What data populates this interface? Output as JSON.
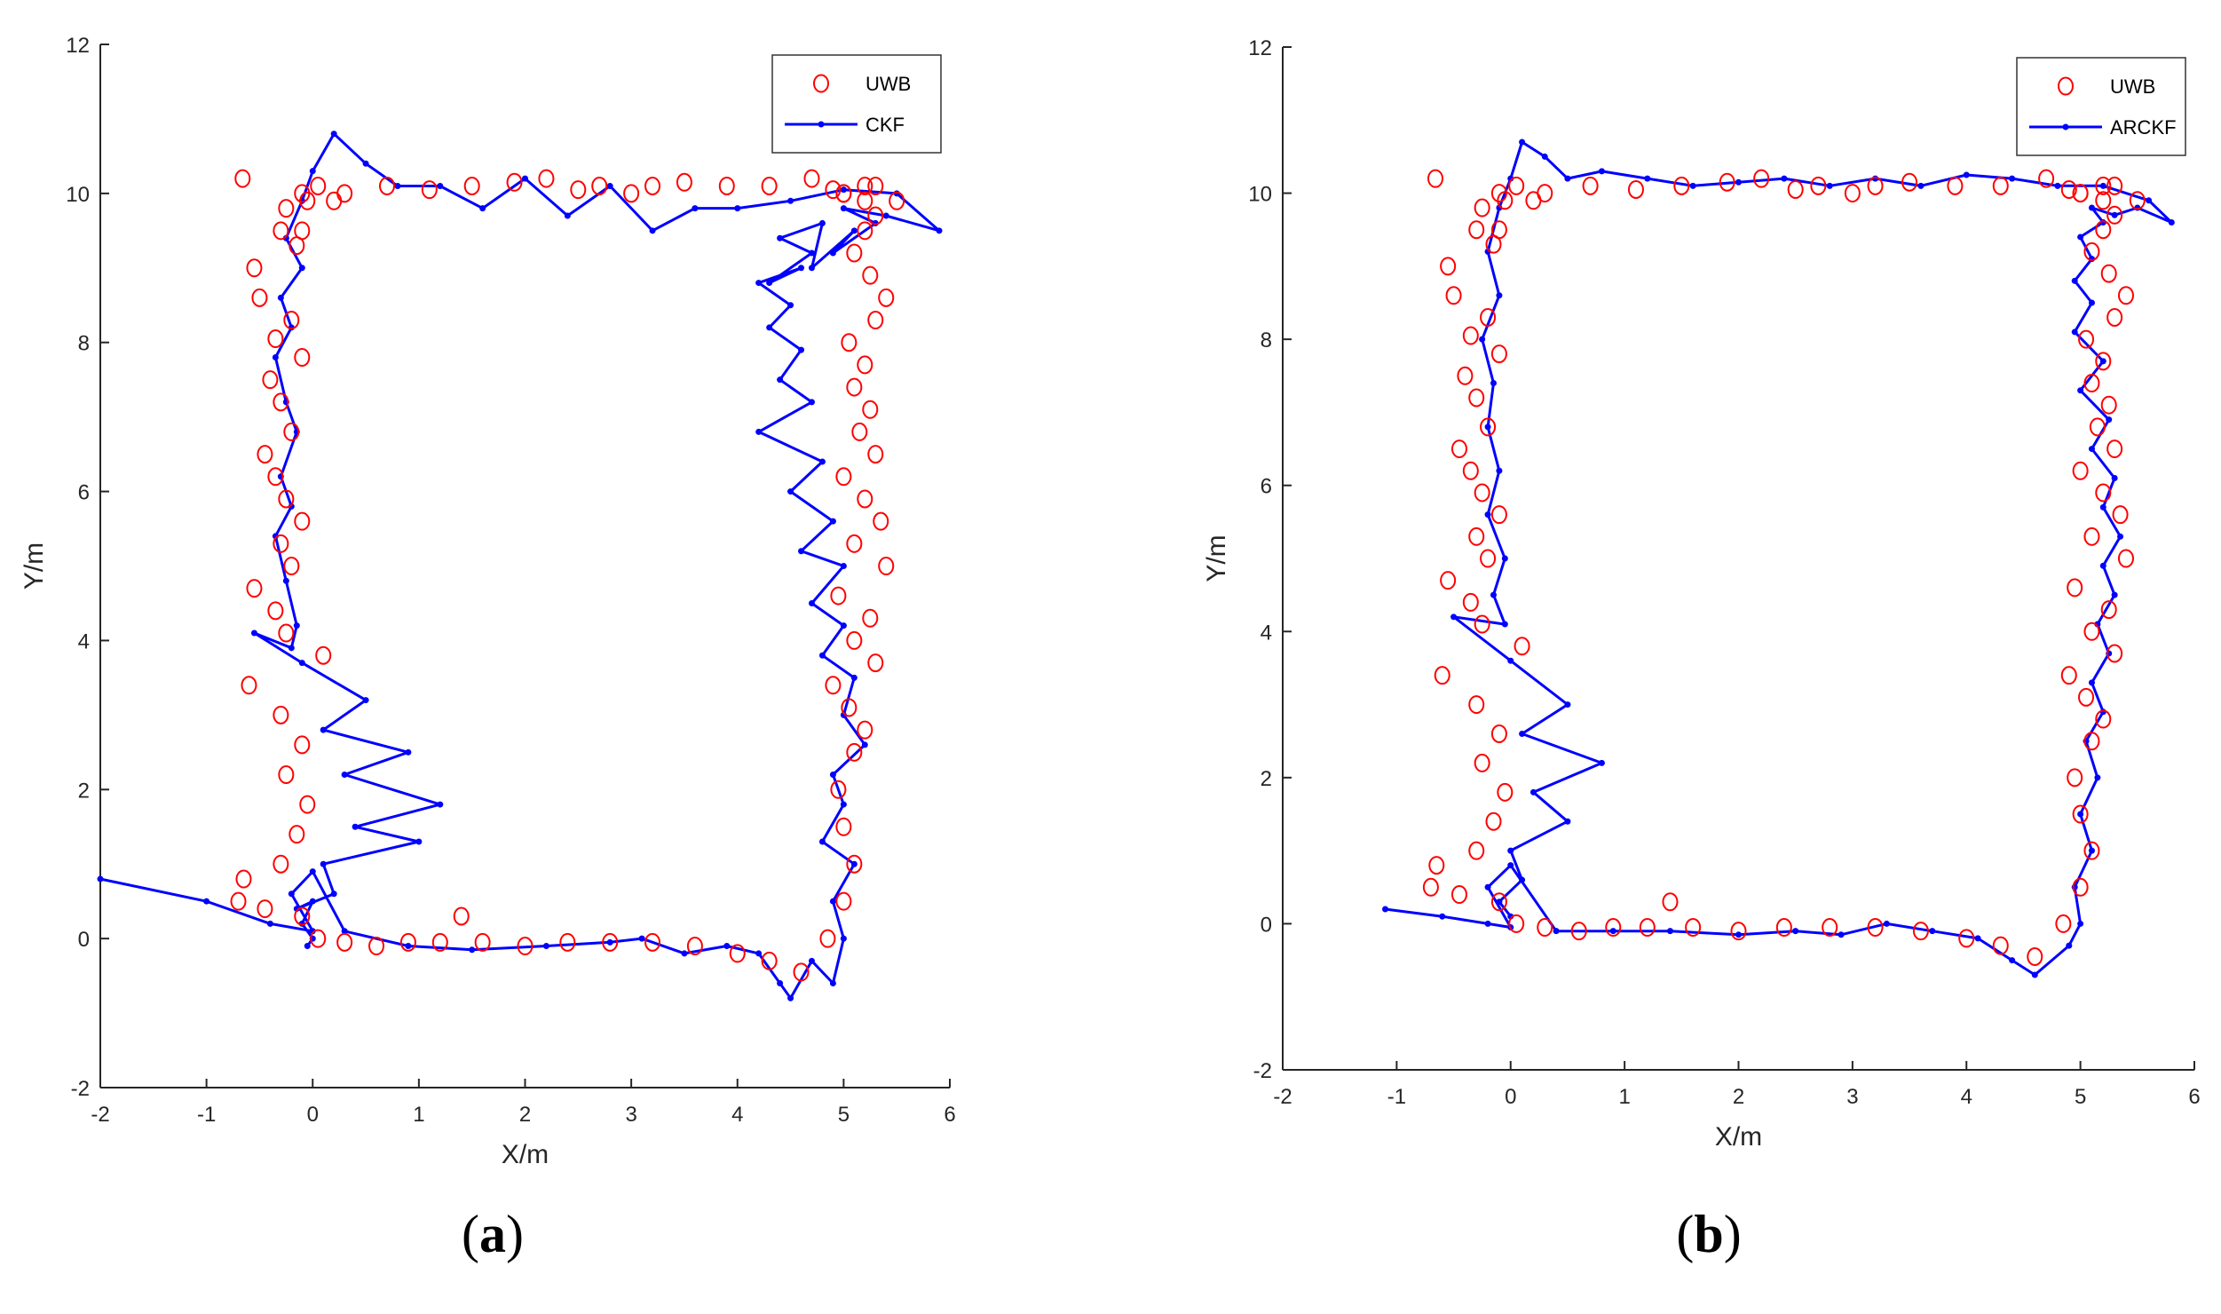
{
  "colors": {
    "uwb": "#ff0000",
    "filter": "#0000ff",
    "axis": "#262626"
  },
  "chart_data": [
    {
      "type": "scatter",
      "panel_label": "a",
      "xlabel": "X/m",
      "ylabel": "Y/m",
      "xlim": [
        -2,
        6
      ],
      "ylim": [
        -2,
        12
      ],
      "xticks": [
        -2,
        -1,
        0,
        1,
        2,
        3,
        4,
        5,
        6
      ],
      "yticks": [
        -2,
        0,
        2,
        4,
        6,
        8,
        10,
        12
      ],
      "legend": "top-right",
      "grid": false,
      "series": [
        {
          "name": "UWB",
          "marker": "circle",
          "x": [
            -0.66,
            -0.1,
            -0.25,
            -0.3,
            -0.15,
            -0.55,
            -0.5,
            -0.2,
            -0.35,
            -0.1,
            -0.4,
            -0.3,
            -0.2,
            -0.45,
            -0.35,
            -0.25,
            -0.1,
            -0.3,
            -0.2,
            -0.55,
            -0.35,
            -0.25,
            0.1,
            -0.6,
            -0.3,
            -0.1,
            -0.25,
            -0.05,
            -0.15,
            -0.3,
            -0.65,
            -0.7,
            -0.45,
            -0.1,
            0.05,
            0.3,
            0.6,
            0.9,
            1.2,
            1.4,
            1.6,
            2.0,
            2.4,
            2.8,
            3.2,
            3.6,
            4.0,
            4.3,
            4.6,
            4.85,
            5.0,
            5.1,
            5.0,
            4.95,
            5.1,
            5.2,
            5.05,
            4.9,
            5.3,
            5.1,
            5.25,
            4.95,
            5.4,
            5.1,
            5.35,
            5.2,
            5.0,
            5.3,
            5.15,
            5.25,
            5.1,
            5.2,
            5.05,
            5.3,
            5.4,
            5.25,
            5.1,
            5.2,
            5.3,
            5.2,
            5.0,
            4.9,
            5.3,
            5.5,
            5.2,
            5.0,
            4.7,
            4.3,
            3.9,
            3.5,
            3.2,
            3.0,
            2.7,
            2.5,
            2.2,
            1.9,
            1.5,
            1.1,
            0.7,
            0.3,
            0.05,
            -0.05,
            -0.1,
            0.2
          ],
          "y": [
            10.2,
            10.0,
            9.8,
            9.5,
            9.3,
            9.0,
            8.6,
            8.3,
            8.05,
            7.8,
            7.5,
            7.2,
            6.8,
            6.5,
            6.2,
            5.9,
            5.6,
            5.3,
            5.0,
            4.7,
            4.4,
            4.1,
            3.8,
            3.4,
            3.0,
            2.6,
            2.2,
            1.8,
            1.4,
            1.0,
            0.8,
            0.5,
            0.4,
            0.3,
            0.0,
            -0.05,
            -0.1,
            -0.05,
            -0.05,
            0.3,
            -0.05,
            -0.1,
            -0.05,
            -0.05,
            -0.05,
            -0.1,
            -0.2,
            -0.3,
            -0.45,
            0.0,
            0.5,
            1.0,
            1.5,
            2.0,
            2.5,
            2.8,
            3.1,
            3.4,
            3.7,
            4.0,
            4.3,
            4.6,
            5.0,
            5.3,
            5.6,
            5.9,
            6.2,
            6.5,
            6.8,
            7.1,
            7.4,
            7.7,
            8.0,
            8.3,
            8.6,
            8.9,
            9.2,
            9.5,
            9.7,
            9.9,
            10.0,
            10.05,
            10.1,
            9.9,
            10.1,
            10.0,
            10.2,
            10.1,
            10.1,
            10.15,
            10.1,
            10.0,
            10.1,
            10.05,
            10.2,
            10.15,
            10.1,
            10.05,
            10.1,
            10.0,
            10.1,
            9.9,
            9.5,
            9.9
          ]
        },
        {
          "name": "CKF",
          "marker": "line-dot",
          "x": [
            -2.0,
            -1.0,
            -0.4,
            0.0,
            -0.2,
            0.0,
            0.3,
            0.9,
            1.5,
            2.2,
            2.8,
            3.1,
            3.5,
            3.9,
            4.2,
            4.4,
            4.5,
            4.7,
            4.9,
            5.0,
            4.9,
            5.1,
            4.8,
            5.0,
            4.9,
            5.2,
            5.0,
            5.1,
            4.8,
            5.0,
            4.7,
            5.0,
            4.6,
            4.9,
            4.5,
            4.8,
            4.2,
            4.7,
            4.4,
            4.6,
            4.3,
            4.5,
            4.2,
            4.6,
            4.3,
            4.7,
            4.4,
            4.8,
            4.7,
            5.1,
            4.9,
            5.3,
            5.0,
            5.4,
            5.9,
            5.5,
            5.0,
            4.5,
            4.0,
            3.6,
            3.2,
            2.8,
            2.4,
            2.0,
            1.6,
            1.2,
            0.8,
            0.5,
            0.2,
            0.0,
            -0.1,
            -0.25,
            -0.1,
            -0.3,
            -0.2,
            -0.35,
            -0.25,
            -0.15,
            -0.3,
            -0.2,
            -0.35,
            -0.25,
            -0.15,
            -0.2,
            -0.55,
            -0.1,
            0.5,
            0.1,
            0.9,
            0.3,
            1.2,
            0.4,
            1.0,
            0.1,
            0.2,
            -0.15,
            0.0,
            -0.1,
            0.0,
            -0.05
          ],
          "y": [
            0.8,
            0.5,
            0.2,
            0.1,
            0.6,
            0.9,
            0.1,
            -0.1,
            -0.15,
            -0.1,
            -0.05,
            0.0,
            -0.2,
            -0.1,
            -0.2,
            -0.6,
            -0.8,
            -0.3,
            -0.6,
            0.0,
            0.5,
            1.0,
            1.3,
            1.8,
            2.2,
            2.6,
            3.0,
            3.5,
            3.8,
            4.2,
            4.5,
            5.0,
            5.2,
            5.6,
            6.0,
            6.4,
            6.8,
            7.2,
            7.5,
            7.9,
            8.2,
            8.5,
            8.8,
            9.0,
            8.8,
            9.2,
            9.4,
            9.6,
            9.0,
            9.5,
            9.2,
            9.6,
            9.8,
            9.7,
            9.5,
            10.0,
            10.05,
            9.9,
            9.8,
            9.8,
            9.5,
            10.1,
            9.7,
            10.2,
            9.8,
            10.1,
            10.1,
            10.4,
            10.8,
            10.3,
            9.9,
            9.4,
            9.0,
            8.6,
            8.2,
            7.8,
            7.2,
            6.8,
            6.2,
            5.8,
            5.4,
            4.8,
            4.2,
            3.9,
            4.1,
            3.7,
            3.2,
            2.8,
            2.5,
            2.2,
            1.8,
            1.5,
            1.3,
            1.0,
            0.6,
            0.4,
            0.5,
            0.2,
            0.0,
            -0.1
          ]
        }
      ]
    },
    {
      "type": "scatter",
      "panel_label": "b",
      "xlabel": "X/m",
      "ylabel": "Y/m",
      "xlim": [
        -2,
        6
      ],
      "ylim": [
        -2,
        12
      ],
      "xticks": [
        -2,
        -1,
        0,
        1,
        2,
        3,
        4,
        5,
        6
      ],
      "yticks": [
        -2,
        0,
        2,
        4,
        6,
        8,
        10,
        12
      ],
      "legend": "top-right",
      "grid": false,
      "series": [
        {
          "name": "UWB",
          "marker": "circle",
          "x": [
            -0.66,
            -0.1,
            -0.25,
            -0.3,
            -0.15,
            -0.55,
            -0.5,
            -0.2,
            -0.35,
            -0.1,
            -0.4,
            -0.3,
            -0.2,
            -0.45,
            -0.35,
            -0.25,
            -0.1,
            -0.3,
            -0.2,
            -0.55,
            -0.35,
            -0.25,
            0.1,
            -0.6,
            -0.3,
            -0.1,
            -0.25,
            -0.05,
            -0.15,
            -0.3,
            -0.65,
            -0.7,
            -0.45,
            -0.1,
            0.05,
            0.3,
            0.6,
            0.9,
            1.2,
            1.4,
            1.6,
            2.0,
            2.4,
            2.8,
            3.2,
            3.6,
            4.0,
            4.3,
            4.6,
            4.85,
            5.0,
            5.1,
            5.0,
            4.95,
            5.1,
            5.2,
            5.05,
            4.9,
            5.3,
            5.1,
            5.25,
            4.95,
            5.4,
            5.1,
            5.35,
            5.2,
            5.0,
            5.3,
            5.15,
            5.25,
            5.1,
            5.2,
            5.05,
            5.3,
            5.4,
            5.25,
            5.1,
            5.2,
            5.3,
            5.2,
            5.0,
            4.9,
            5.3,
            5.5,
            5.2,
            5.0,
            4.7,
            4.3,
            3.9,
            3.5,
            3.2,
            3.0,
            2.7,
            2.5,
            2.2,
            1.9,
            1.5,
            1.1,
            0.7,
            0.3,
            0.05,
            -0.05,
            -0.1,
            0.2
          ],
          "y": [
            10.2,
            10.0,
            9.8,
            9.5,
            9.3,
            9.0,
            8.6,
            8.3,
            8.05,
            7.8,
            7.5,
            7.2,
            6.8,
            6.5,
            6.2,
            5.9,
            5.6,
            5.3,
            5.0,
            4.7,
            4.4,
            4.1,
            3.8,
            3.4,
            3.0,
            2.6,
            2.2,
            1.8,
            1.4,
            1.0,
            0.8,
            0.5,
            0.4,
            0.3,
            0.0,
            -0.05,
            -0.1,
            -0.05,
            -0.05,
            0.3,
            -0.05,
            -0.1,
            -0.05,
            -0.05,
            -0.05,
            -0.1,
            -0.2,
            -0.3,
            -0.45,
            0.0,
            0.5,
            1.0,
            1.5,
            2.0,
            2.5,
            2.8,
            3.1,
            3.4,
            3.7,
            4.0,
            4.3,
            4.6,
            5.0,
            5.3,
            5.6,
            5.9,
            6.2,
            6.5,
            6.8,
            7.1,
            7.4,
            7.7,
            8.0,
            8.3,
            8.6,
            8.9,
            9.2,
            9.5,
            9.7,
            9.9,
            10.0,
            10.05,
            10.1,
            9.9,
            10.1,
            10.0,
            10.2,
            10.1,
            10.1,
            10.15,
            10.1,
            10.0,
            10.1,
            10.05,
            10.2,
            10.15,
            10.1,
            10.05,
            10.1,
            10.0,
            10.1,
            9.9,
            9.5,
            9.9
          ]
        },
        {
          "name": "ARCKF",
          "marker": "line-dot",
          "x": [
            -1.1,
            -0.6,
            -0.2,
            0.0,
            -0.2,
            0.0,
            0.4,
            0.9,
            1.4,
            2.0,
            2.5,
            2.9,
            3.3,
            3.7,
            4.1,
            4.4,
            4.6,
            4.9,
            5.0,
            4.95,
            5.1,
            5.0,
            5.15,
            5.05,
            5.2,
            5.1,
            5.25,
            5.15,
            5.3,
            5.2,
            5.35,
            5.2,
            5.3,
            5.1,
            5.25,
            5.0,
            5.2,
            4.95,
            5.1,
            4.95,
            5.1,
            5.0,
            5.2,
            5.1,
            5.3,
            5.5,
            5.8,
            5.6,
            5.2,
            4.8,
            4.4,
            4.0,
            3.6,
            3.2,
            2.8,
            2.4,
            2.0,
            1.6,
            1.2,
            0.8,
            0.5,
            0.3,
            0.1,
            0.0,
            -0.1,
            -0.2,
            -0.1,
            -0.25,
            -0.15,
            -0.2,
            -0.1,
            -0.2,
            -0.05,
            -0.15,
            -0.05,
            -0.5,
            0.0,
            0.5,
            0.1,
            0.8,
            0.2,
            0.5,
            0.0,
            0.1,
            -0.1,
            0.0
          ],
          "y": [
            0.2,
            0.1,
            0.0,
            -0.05,
            0.5,
            0.8,
            -0.1,
            -0.1,
            -0.1,
            -0.15,
            -0.1,
            -0.15,
            0.0,
            -0.1,
            -0.2,
            -0.5,
            -0.7,
            -0.3,
            0.0,
            0.5,
            1.0,
            1.5,
            2.0,
            2.5,
            2.9,
            3.3,
            3.7,
            4.1,
            4.5,
            4.9,
            5.3,
            5.7,
            6.1,
            6.5,
            6.9,
            7.3,
            7.7,
            8.1,
            8.5,
            8.8,
            9.1,
            9.4,
            9.6,
            9.8,
            9.7,
            9.8,
            9.6,
            9.9,
            10.1,
            10.1,
            10.2,
            10.25,
            10.1,
            10.2,
            10.1,
            10.2,
            10.15,
            10.1,
            10.2,
            10.3,
            10.2,
            10.5,
            10.7,
            10.2,
            9.8,
            9.2,
            8.6,
            8.0,
            7.4,
            6.8,
            6.2,
            5.6,
            5.0,
            4.5,
            4.1,
            4.2,
            3.6,
            3.0,
            2.6,
            2.2,
            1.8,
            1.4,
            1.0,
            0.6,
            0.3,
            0.1
          ]
        }
      ]
    }
  ]
}
